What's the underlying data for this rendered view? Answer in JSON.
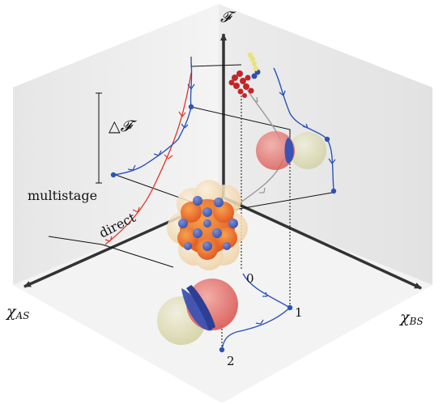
{
  "labels": {
    "f_axis": "𝓕",
    "delta_f": "△𝓕",
    "multistage": "multistage",
    "direct": "direct",
    "chi_as": "χ",
    "chi_as_sub": "AS",
    "chi_bs": "χ",
    "chi_bs_sub": "BS",
    "pt0": "0",
    "pt1": "1",
    "pt2": "2"
  },
  "colors": {
    "path_blue": "#2b54b8",
    "path_red": "#e0362c",
    "path_gray": "#9a9a9a",
    "axis": "#333333",
    "sphere_red": "#e56b6b",
    "sphere_blue": "#3b52b4",
    "sphere_olive": "#d8d6a8"
  }
}
